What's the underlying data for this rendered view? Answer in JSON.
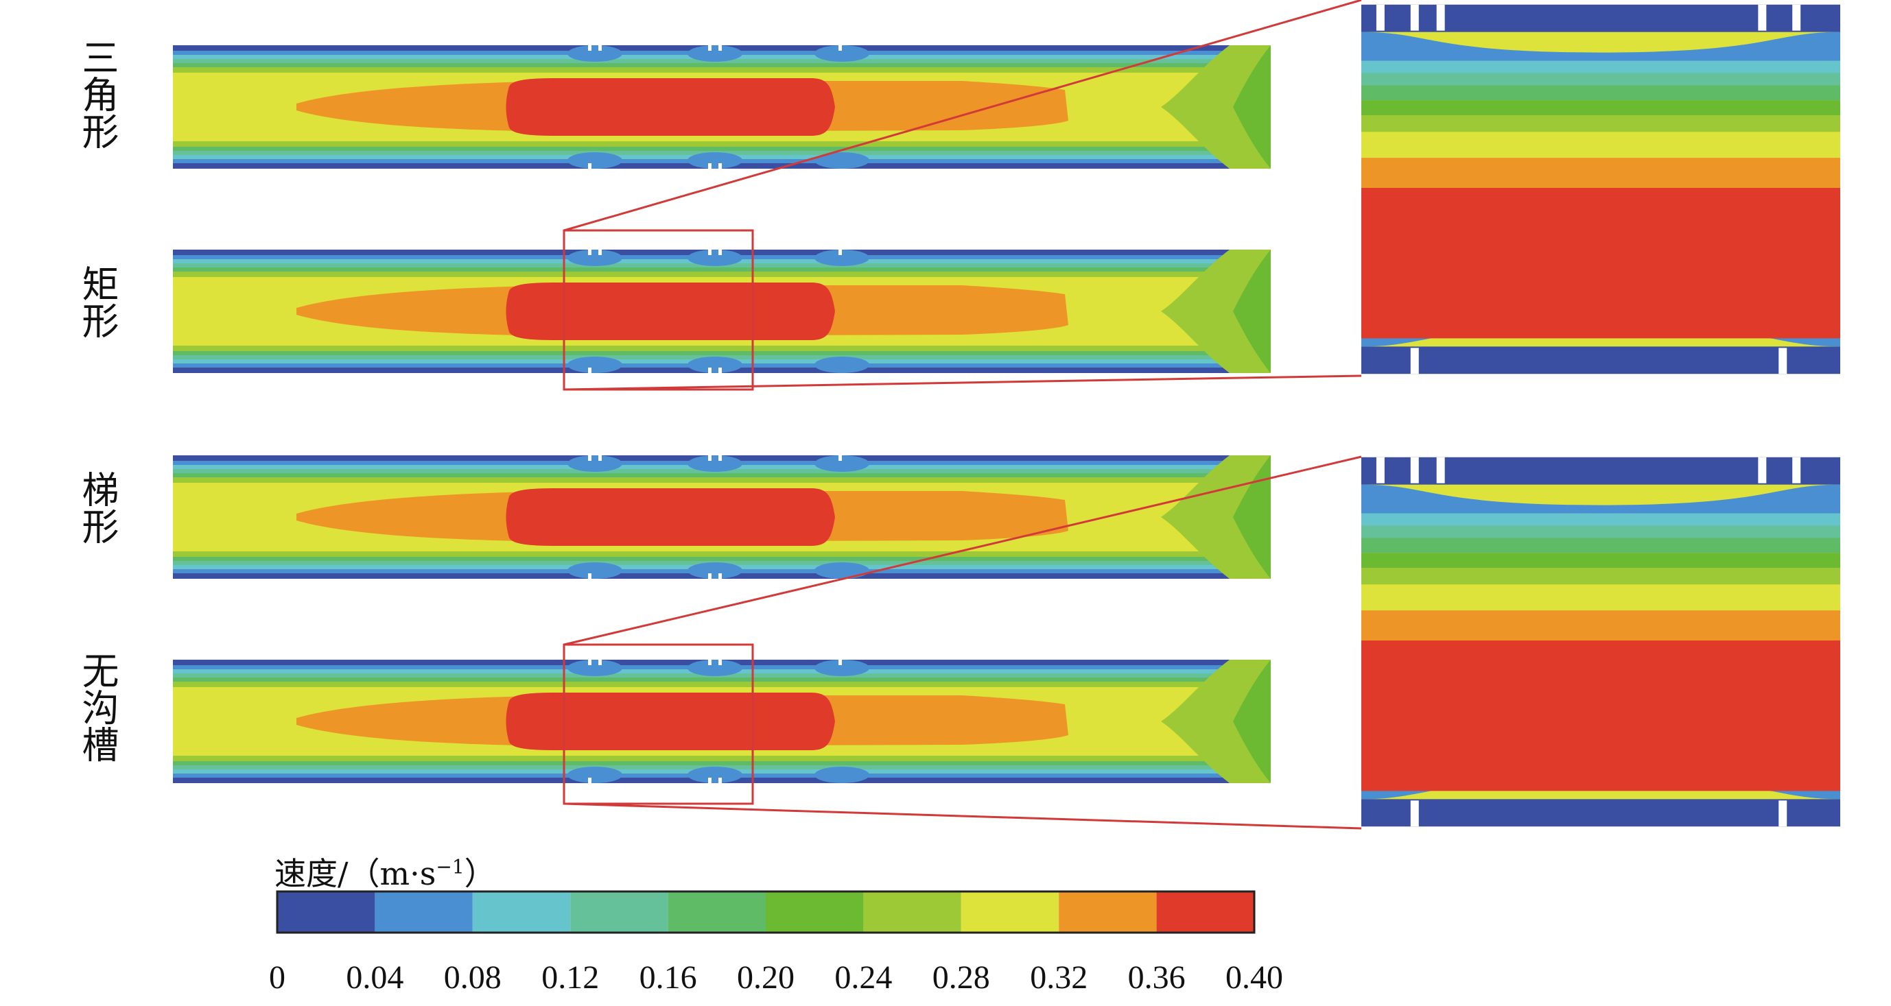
{
  "labels": {
    "triangle": "三角形",
    "rectangle": "矩形",
    "trapezoid": "梯形",
    "no_groove": "无沟槽"
  },
  "legend": {
    "title": "速度/（m·s",
    "title_sup": "−1",
    "title_close": "）",
    "ticks": [
      "0",
      "0.04",
      "0.08",
      "0.12",
      "0.16",
      "0.20",
      "0.24",
      "0.28",
      "0.32",
      "0.36",
      "0.40"
    ],
    "colors": [
      "#3a4fa2",
      "#4a8fd2",
      "#66c4cc",
      "#64c19a",
      "#60bb66",
      "#6cb932",
      "#9dc937",
      "#dde33a",
      "#ee9527",
      "#e03a2a"
    ]
  }
}
